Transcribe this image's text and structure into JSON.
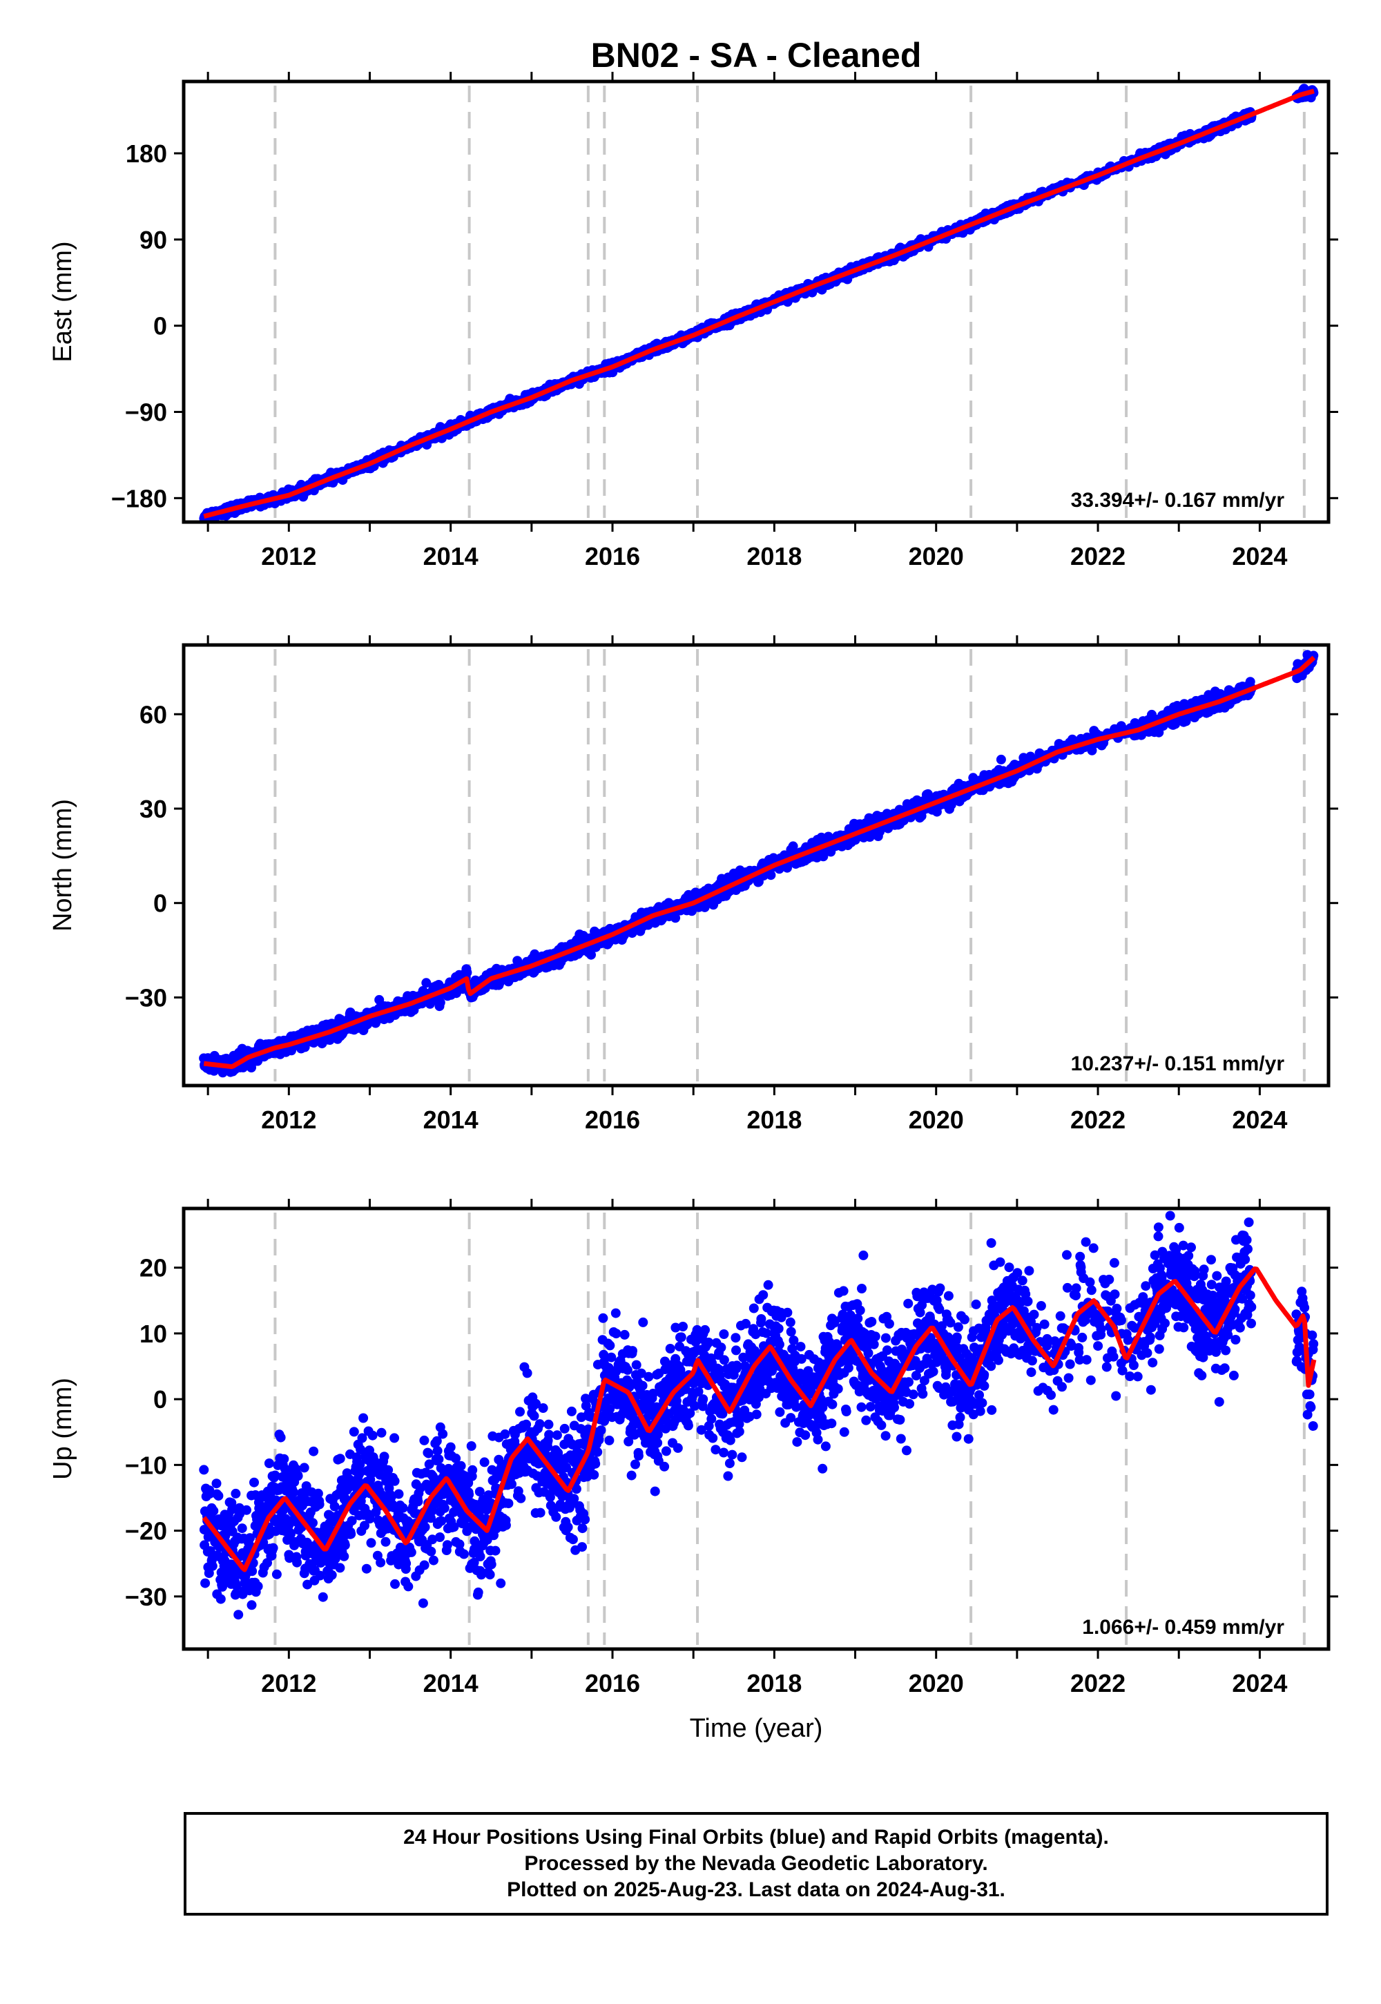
{
  "title": "BN02  - SA - Cleaned",
  "colors": {
    "data_points": "#0000ff",
    "model_line": "#ff0000",
    "event_lines": "#c8c8c8",
    "frame": "#000000"
  },
  "chart_data": [
    {
      "type": "scatter",
      "ylabel": "East (mm)",
      "xlabel": "",
      "xlim": [
        2010.7,
        2024.85
      ],
      "ylim": [
        -205,
        255
      ],
      "yticks": [
        -180,
        -90,
        0,
        90,
        180
      ],
      "ytick_labels": [
        "−180",
        "−90",
        "0",
        "90",
        "180"
      ],
      "xticks": [
        2012,
        2014,
        2016,
        2018,
        2020,
        2022,
        2024
      ],
      "xtick_labels": [
        "2012",
        "2014",
        "2016",
        "2018",
        "2020",
        "2022",
        "2024"
      ],
      "rate_label": "33.394+/- 0.167 mm/yr",
      "event_lines": [
        2011.83,
        2014.23,
        2015.7,
        2015.9,
        2017.05,
        2020.43,
        2022.35,
        2024.55
      ],
      "series": [
        {
          "x": [
            2010.95,
            2011.5,
            2012.0,
            2012.5,
            2013.0,
            2013.5,
            2014.0,
            2014.5,
            2015.0,
            2015.5,
            2016.0,
            2016.5,
            2017.0,
            2017.5,
            2018.0,
            2018.5,
            2019.0,
            2019.5,
            2020.0,
            2020.5,
            2021.0,
            2021.5,
            2022.0,
            2022.5,
            2023.0,
            2023.5,
            2024.0,
            2024.5,
            2024.67
          ],
          "values": [
            -199,
            -187,
            -177,
            -160,
            -144,
            -125,
            -108,
            -90,
            -75,
            -57,
            -43,
            -25,
            -10,
            8,
            25,
            42,
            58,
            74,
            91,
            108,
            125,
            141,
            157,
            174,
            190,
            207,
            224,
            241,
            245
          ]
        }
      ]
    },
    {
      "type": "scatter",
      "ylabel": "North (mm)",
      "xlabel": "",
      "xlim": [
        2010.7,
        2024.85
      ],
      "ylim": [
        -58,
        82
      ],
      "yticks": [
        -30,
        0,
        30,
        60
      ],
      "ytick_labels": [
        "−30",
        "0",
        "30",
        "60"
      ],
      "xticks": [
        2012,
        2014,
        2016,
        2018,
        2020,
        2022,
        2024
      ],
      "xtick_labels": [
        "2012",
        "2014",
        "2016",
        "2018",
        "2020",
        "2022",
        "2024"
      ],
      "rate_label": "10.237+/- 0.151 mm/yr",
      "event_lines": [
        2011.83,
        2014.23,
        2015.7,
        2015.9,
        2017.05,
        2020.43,
        2022.35,
        2024.55
      ],
      "series": [
        {
          "x": [
            2010.95,
            2011.3,
            2011.5,
            2011.83,
            2012.0,
            2012.5,
            2013.0,
            2013.5,
            2014.0,
            2014.2,
            2014.23,
            2014.5,
            2015.0,
            2015.5,
            2015.7,
            2016.0,
            2016.5,
            2017.0,
            2017.5,
            2018.0,
            2018.5,
            2019.0,
            2019.5,
            2020.0,
            2020.5,
            2021.0,
            2021.5,
            2022.0,
            2022.5,
            2023.0,
            2023.5,
            2024.0,
            2024.5,
            2024.67
          ],
          "values": [
            -51,
            -52,
            -49,
            -46,
            -45,
            -41,
            -36,
            -32,
            -27,
            -24,
            -29,
            -24,
            -20,
            -15,
            -13,
            -10,
            -4,
            0,
            6,
            12,
            17,
            22,
            27,
            32,
            37,
            42,
            48,
            52,
            55,
            60,
            64,
            69,
            74,
            78
          ]
        }
      ]
    },
    {
      "type": "scatter",
      "ylabel": "Up (mm)",
      "xlabel": "Time (year)",
      "xlim": [
        2010.7,
        2024.85
      ],
      "ylim": [
        -38,
        29
      ],
      "yticks": [
        -30,
        -20,
        -10,
        0,
        10,
        20
      ],
      "ytick_labels": [
        "−30",
        "−20",
        "−10",
        "0",
        "10",
        "20"
      ],
      "xticks": [
        2012,
        2014,
        2016,
        2018,
        2020,
        2022,
        2024
      ],
      "xtick_labels": [
        "2012",
        "2014",
        "2016",
        "2018",
        "2020",
        "2022",
        "2024"
      ],
      "rate_label": "1.066+/- 0.459 mm/yr",
      "event_lines": [
        2011.83,
        2014.23,
        2015.7,
        2015.9,
        2017.05,
        2020.43,
        2022.35,
        2024.55
      ],
      "series": [
        {
          "x": [
            2010.95,
            2011.2,
            2011.45,
            2011.75,
            2011.95,
            2012.2,
            2012.45,
            2012.75,
            2012.95,
            2013.2,
            2013.45,
            2013.75,
            2013.95,
            2014.2,
            2014.45,
            2014.75,
            2014.95,
            2015.2,
            2015.45,
            2015.7,
            2015.9,
            2016.2,
            2016.45,
            2016.75,
            2017.0,
            2017.05,
            2017.25,
            2017.45,
            2017.75,
            2017.95,
            2018.2,
            2018.45,
            2018.75,
            2018.95,
            2019.2,
            2019.45,
            2019.75,
            2019.95,
            2020.2,
            2020.43,
            2020.75,
            2020.95,
            2021.2,
            2021.45,
            2021.75,
            2021.95,
            2022.2,
            2022.35,
            2022.75,
            2022.95,
            2023.2,
            2023.45,
            2023.75,
            2023.95,
            2024.2,
            2024.45,
            2024.55,
            2024.6,
            2024.67
          ],
          "values": [
            -18,
            -22,
            -26,
            -18,
            -15,
            -19,
            -23,
            -16,
            -13,
            -17,
            -22,
            -15,
            -12,
            -17,
            -20,
            -9,
            -6,
            -10,
            -14,
            -8,
            3,
            1,
            -5,
            1,
            4,
            6,
            2,
            -2,
            5,
            8,
            3,
            -1,
            6,
            9,
            4,
            1,
            8,
            11,
            6,
            2,
            12,
            14,
            9,
            5,
            13,
            15,
            11,
            6,
            16,
            18,
            14,
            10,
            17,
            20,
            15,
            11,
            13,
            2,
            6
          ]
        }
      ]
    }
  ],
  "caption": {
    "line1": "24 Hour Positions Using Final Orbits (blue) and Rapid Orbits (magenta).",
    "line2": "Processed by the Nevada Geodetic Laboratory.",
    "line3": "Plotted on 2025-Aug-23. Last data on 2024-Aug-31."
  }
}
